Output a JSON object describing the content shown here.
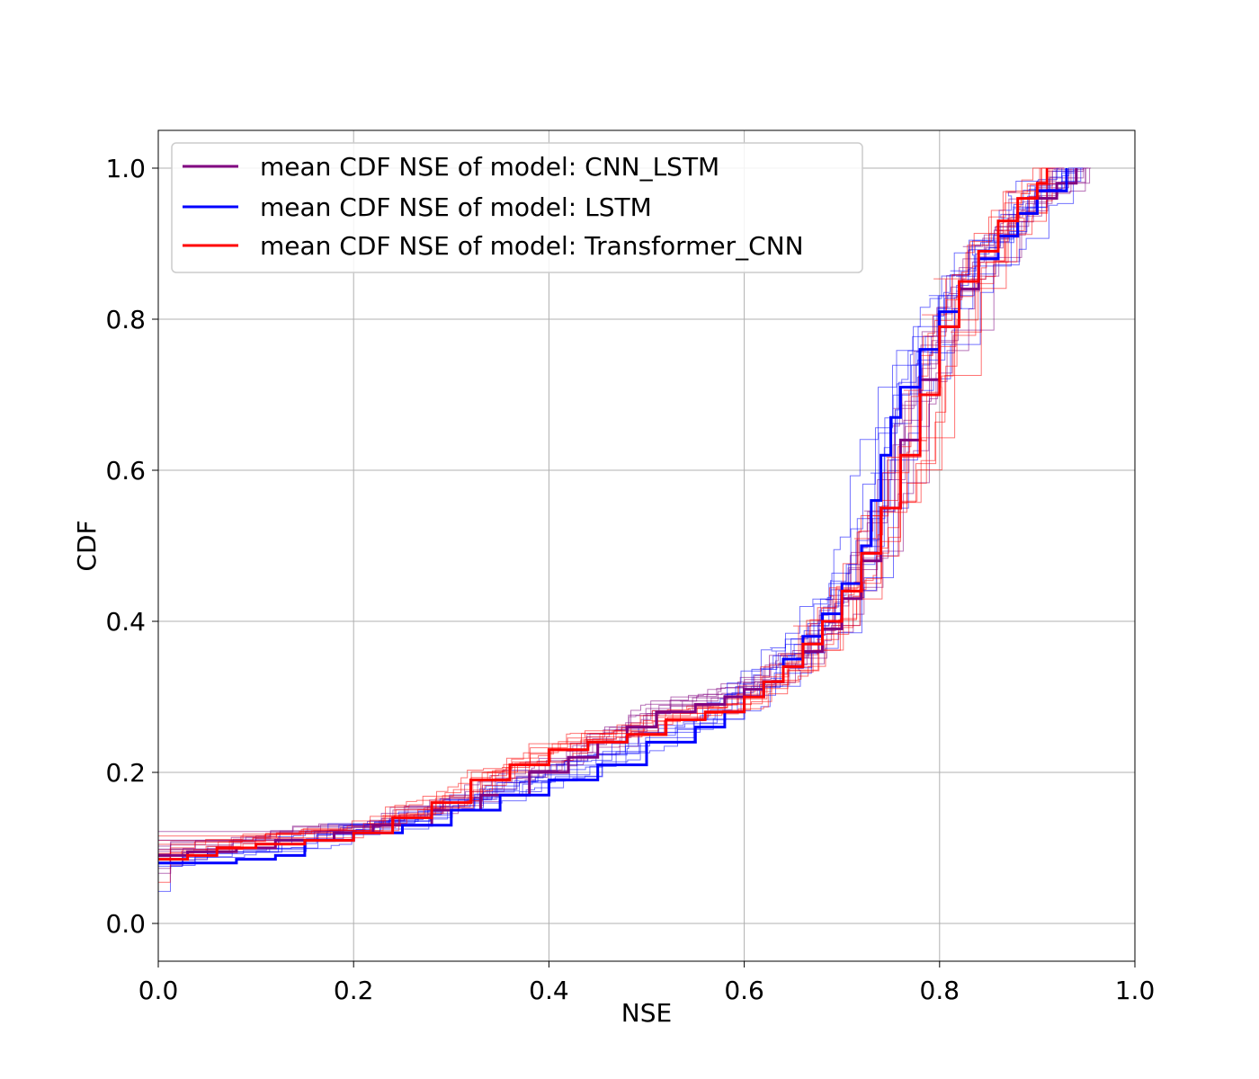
{
  "chart_data": {
    "type": "line",
    "xlabel": "NSE",
    "ylabel": "CDF",
    "xlim": [
      0.0,
      1.0
    ],
    "ylim": [
      -0.05,
      1.05
    ],
    "xticks": [
      "0.0",
      "0.2",
      "0.4",
      "0.6",
      "0.8",
      "1.0"
    ],
    "yticks": [
      "0.0",
      "0.2",
      "0.4",
      "0.6",
      "0.8",
      "1.0"
    ],
    "grid": true,
    "legend_position": "upper-left",
    "colors": {
      "CNN_LSTM": "#800080",
      "LSTM": "#0000ff",
      "Transformer_CNN": "#ff0000"
    },
    "series": [
      {
        "name": "mean CDF NSE of model: CNN_LSTM",
        "color": "#800080",
        "x": [
          0.0,
          0.03,
          0.08,
          0.12,
          0.18,
          0.22,
          0.28,
          0.33,
          0.38,
          0.42,
          0.45,
          0.48,
          0.51,
          0.55,
          0.58,
          0.6,
          0.62,
          0.64,
          0.66,
          0.68,
          0.7,
          0.72,
          0.74,
          0.76,
          0.78,
          0.8,
          0.82,
          0.84,
          0.86,
          0.88,
          0.9,
          0.92,
          0.94
        ],
        "y": [
          0.09,
          0.095,
          0.1,
          0.11,
          0.12,
          0.13,
          0.15,
          0.17,
          0.2,
          0.22,
          0.24,
          0.26,
          0.28,
          0.29,
          0.3,
          0.31,
          0.32,
          0.34,
          0.36,
          0.39,
          0.43,
          0.48,
          0.55,
          0.64,
          0.72,
          0.79,
          0.84,
          0.88,
          0.91,
          0.94,
          0.96,
          0.98,
          1.0
        ]
      },
      {
        "name": "mean CDF NSE of model: LSTM",
        "color": "#0000ff",
        "x": [
          0.0,
          0.03,
          0.08,
          0.12,
          0.15,
          0.2,
          0.25,
          0.3,
          0.35,
          0.4,
          0.45,
          0.5,
          0.55,
          0.58,
          0.6,
          0.62,
          0.64,
          0.66,
          0.68,
          0.7,
          0.72,
          0.73,
          0.74,
          0.75,
          0.76,
          0.78,
          0.8,
          0.82,
          0.84,
          0.86,
          0.88,
          0.9,
          0.93
        ],
        "y": [
          0.08,
          0.08,
          0.085,
          0.09,
          0.11,
          0.12,
          0.13,
          0.15,
          0.17,
          0.19,
          0.21,
          0.24,
          0.26,
          0.28,
          0.3,
          0.32,
          0.35,
          0.38,
          0.41,
          0.45,
          0.5,
          0.56,
          0.62,
          0.67,
          0.71,
          0.76,
          0.81,
          0.85,
          0.88,
          0.91,
          0.94,
          0.97,
          1.0
        ]
      },
      {
        "name": "mean CDF NSE of model: Transformer_CNN",
        "color": "#ff0000",
        "x": [
          0.0,
          0.03,
          0.06,
          0.1,
          0.15,
          0.2,
          0.24,
          0.28,
          0.32,
          0.36,
          0.4,
          0.44,
          0.48,
          0.52,
          0.56,
          0.6,
          0.62,
          0.64,
          0.66,
          0.68,
          0.7,
          0.72,
          0.74,
          0.76,
          0.78,
          0.8,
          0.82,
          0.84,
          0.86,
          0.88,
          0.9,
          0.91
        ],
        "y": [
          0.085,
          0.09,
          0.1,
          0.105,
          0.11,
          0.12,
          0.14,
          0.16,
          0.19,
          0.21,
          0.23,
          0.24,
          0.25,
          0.27,
          0.28,
          0.3,
          0.32,
          0.34,
          0.37,
          0.4,
          0.44,
          0.49,
          0.55,
          0.62,
          0.7,
          0.79,
          0.85,
          0.89,
          0.93,
          0.96,
          0.98,
          1.0
        ]
      }
    ]
  }
}
